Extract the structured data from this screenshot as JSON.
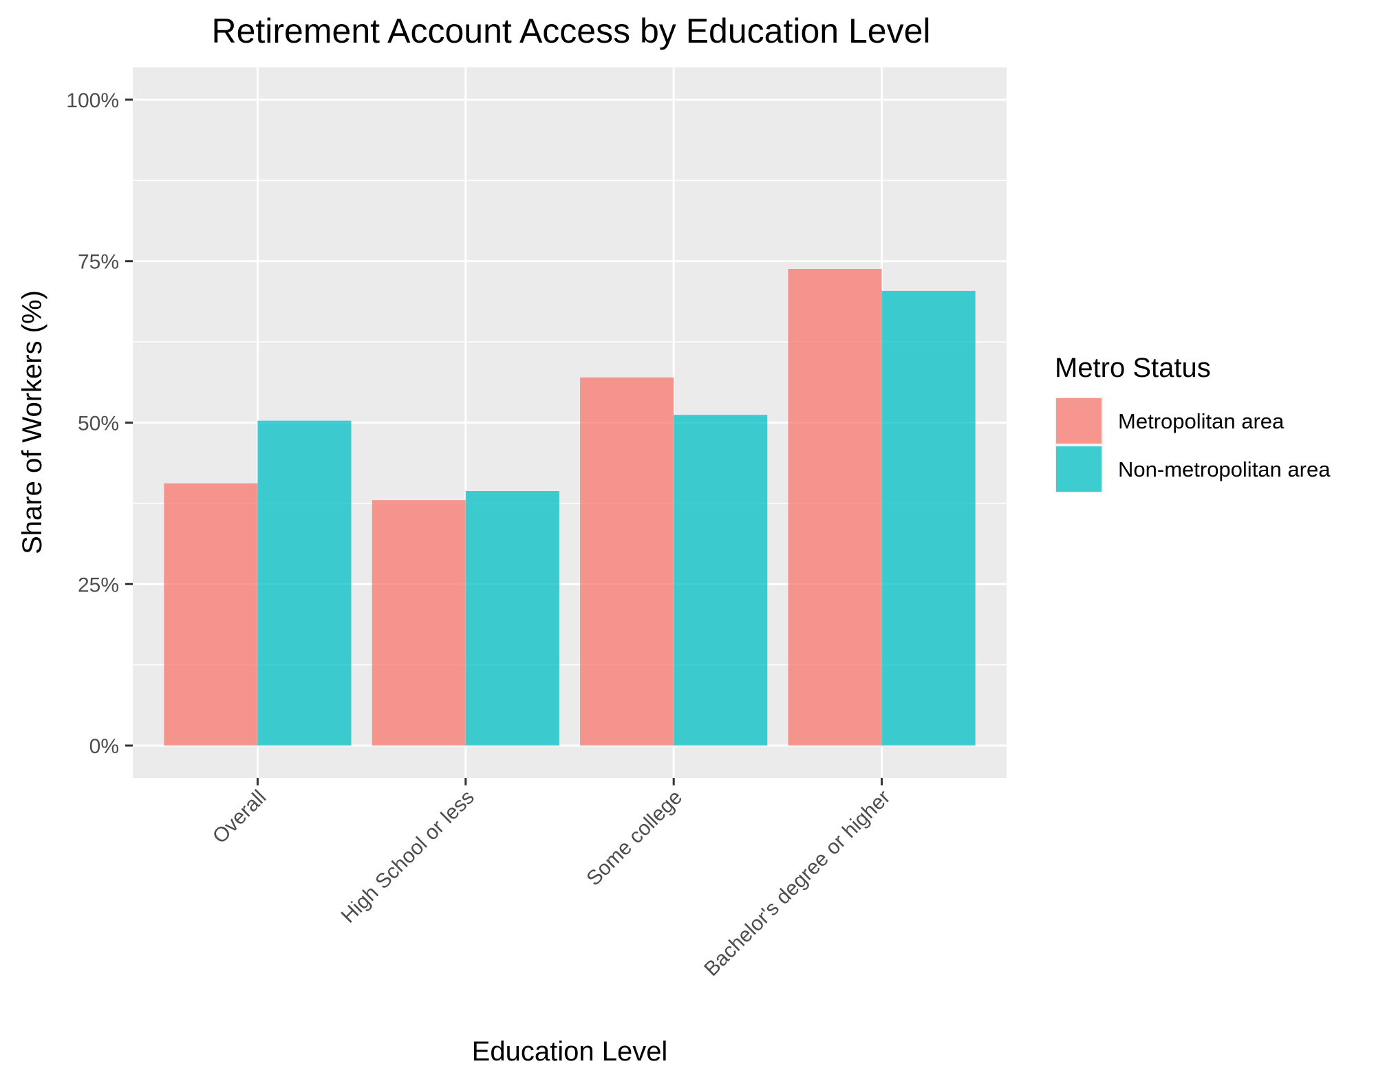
{
  "chart_data": {
    "type": "bar",
    "title": "Retirement Account Access by Education Level",
    "xlabel": "Education Level",
    "ylabel": "Share of Workers (%)",
    "categories": [
      "Overall",
      "High School or less",
      "Some college",
      "Bachelor's degree or higher"
    ],
    "series": [
      {
        "name": "Metropolitan area",
        "color": "#F8766D",
        "values": [
          40.6,
          38.0,
          57.0,
          73.8
        ]
      },
      {
        "name": "Non-metropolitan area",
        "color": "#00BFC4",
        "values": [
          50.3,
          39.4,
          51.2,
          70.4
        ]
      }
    ],
    "ylim": [
      -5,
      105
    ],
    "y_ticks": [
      0,
      25,
      50,
      75,
      100
    ],
    "y_tick_labels": [
      "0%",
      "25%",
      "50%",
      "75%",
      "100%"
    ],
    "grid": true,
    "panel_background": "#EBEBEB",
    "legend": {
      "title": "Metro Status",
      "position": "right"
    }
  }
}
